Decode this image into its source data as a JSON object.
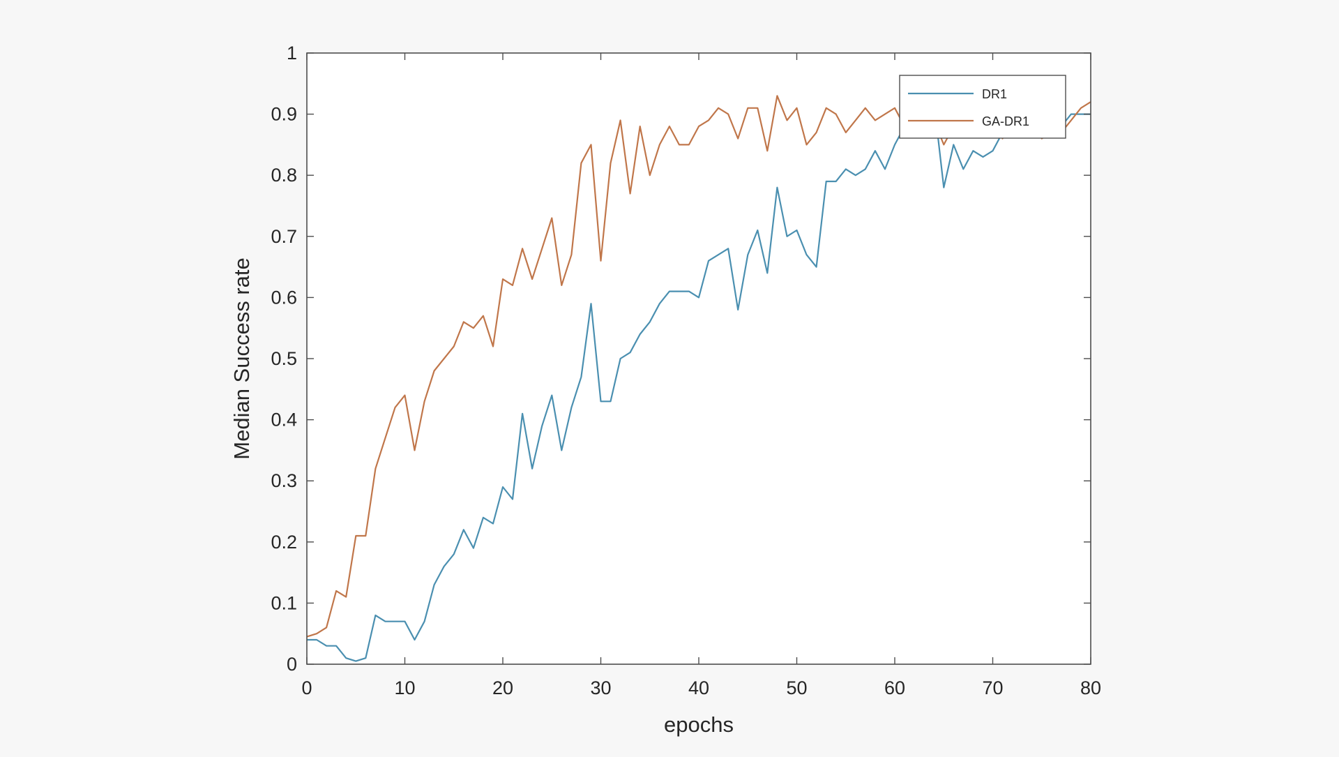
{
  "chart_data": {
    "type": "line",
    "title": "",
    "xlabel": "epochs",
    "ylabel": "Median Success rate",
    "xlim": [
      0,
      80
    ],
    "ylim": [
      0,
      1
    ],
    "xticks": [
      0,
      10,
      20,
      30,
      40,
      50,
      60,
      70,
      80
    ],
    "yticks": [
      0,
      0.1,
      0.2,
      0.3,
      0.4,
      0.5,
      0.6,
      0.7,
      0.8,
      0.9,
      1
    ],
    "ytick_labels": [
      "0",
      "0.1",
      "0.2",
      "0.3",
      "0.4",
      "0.5",
      "0.6",
      "0.7",
      "0.8",
      "0.9",
      "1"
    ],
    "grid": false,
    "legend_position": "top-right",
    "x": [
      0,
      1,
      2,
      3,
      4,
      5,
      6,
      7,
      8,
      9,
      10,
      11,
      12,
      13,
      14,
      15,
      16,
      17,
      18,
      19,
      20,
      21,
      22,
      23,
      24,
      25,
      26,
      27,
      28,
      29,
      30,
      31,
      32,
      33,
      34,
      35,
      36,
      37,
      38,
      39,
      40,
      41,
      42,
      43,
      44,
      45,
      46,
      47,
      48,
      49,
      50,
      51,
      52,
      53,
      54,
      55,
      56,
      57,
      58,
      59,
      60,
      61,
      62,
      63,
      64,
      65,
      66,
      67,
      68,
      69,
      70,
      71,
      72,
      73,
      74,
      75,
      76,
      77,
      78,
      79,
      80
    ],
    "series": [
      {
        "name": "DR1",
        "color": "#4a8fb0",
        "values": [
          0.04,
          0.04,
          0.03,
          0.03,
          0.01,
          0.005,
          0.01,
          0.08,
          0.07,
          0.07,
          0.07,
          0.04,
          0.07,
          0.13,
          0.16,
          0.18,
          0.22,
          0.19,
          0.24,
          0.23,
          0.29,
          0.27,
          0.41,
          0.32,
          0.39,
          0.44,
          0.35,
          0.42,
          0.47,
          0.59,
          0.43,
          0.43,
          0.5,
          0.51,
          0.54,
          0.56,
          0.59,
          0.61,
          0.61,
          0.61,
          0.6,
          0.66,
          0.67,
          0.68,
          0.58,
          0.67,
          0.71,
          0.64,
          0.78,
          0.7,
          0.71,
          0.67,
          0.65,
          0.79,
          0.79,
          0.81,
          0.8,
          0.81,
          0.84,
          0.81,
          0.85,
          0.88,
          0.9,
          0.9,
          0.92,
          0.78,
          0.85,
          0.81,
          0.84,
          0.83,
          0.84,
          0.87,
          0.88,
          0.89,
          0.88,
          0.89,
          0.88,
          0.88,
          0.9,
          0.9,
          0.9
        ]
      },
      {
        "name": "GA-DR1",
        "color": "#c0764a",
        "values": [
          0.045,
          0.05,
          0.06,
          0.12,
          0.11,
          0.21,
          0.21,
          0.32,
          0.37,
          0.42,
          0.44,
          0.35,
          0.43,
          0.48,
          0.5,
          0.52,
          0.56,
          0.55,
          0.57,
          0.52,
          0.63,
          0.62,
          0.68,
          0.63,
          0.68,
          0.73,
          0.62,
          0.67,
          0.82,
          0.85,
          0.66,
          0.82,
          0.89,
          0.77,
          0.88,
          0.8,
          0.85,
          0.88,
          0.85,
          0.85,
          0.88,
          0.89,
          0.91,
          0.9,
          0.86,
          0.91,
          0.91,
          0.84,
          0.93,
          0.89,
          0.91,
          0.85,
          0.87,
          0.91,
          0.9,
          0.87,
          0.89,
          0.91,
          0.89,
          0.9,
          0.91,
          0.88,
          0.88,
          0.91,
          0.89,
          0.85,
          0.88,
          0.87,
          0.9,
          0.88,
          0.89,
          0.86,
          0.88,
          0.87,
          0.88,
          0.86,
          0.87,
          0.87,
          0.89,
          0.91,
          0.92
        ]
      }
    ]
  }
}
